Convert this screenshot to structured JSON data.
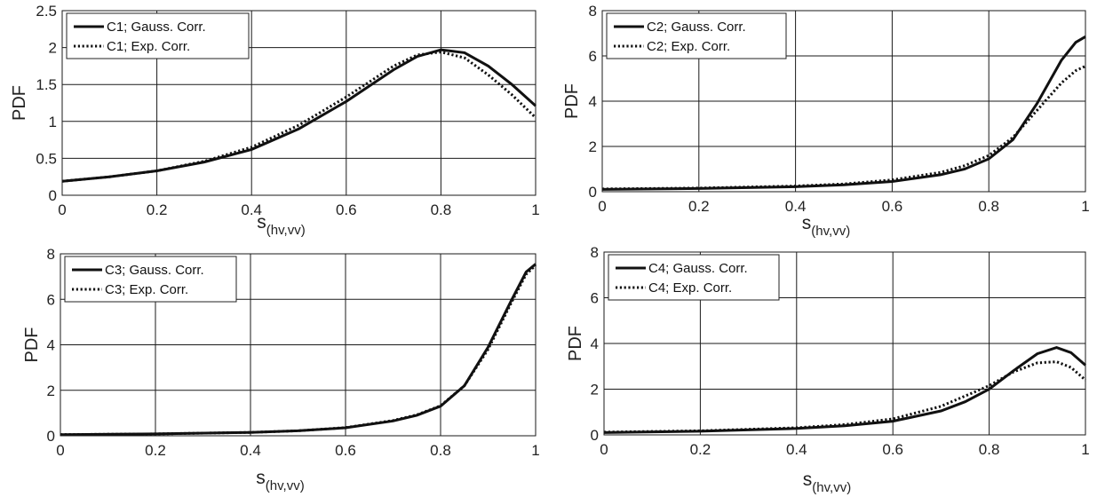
{
  "chart_data": [
    {
      "type": "line",
      "panel": "C1",
      "xlabel_main": "s",
      "xlabel_sub": "(hv,vv)",
      "ylabel": "PDF",
      "xlim": [
        0,
        1
      ],
      "ylim": [
        0,
        2.5
      ],
      "xticks": [
        "0",
        "0.2",
        "0.4",
        "0.6",
        "0.8",
        "1"
      ],
      "yticks": [
        "0",
        "0.5",
        "1",
        "1.5",
        "2",
        "2.5"
      ],
      "grid": true,
      "legend_position": "top-left",
      "series": [
        {
          "name": "C1; Gauss. Corr.",
          "style": "solid",
          "x": [
            0,
            0.1,
            0.2,
            0.3,
            0.4,
            0.5,
            0.6,
            0.7,
            0.75,
            0.8,
            0.85,
            0.9,
            0.95,
            1.0
          ],
          "y": [
            0.19,
            0.25,
            0.33,
            0.45,
            0.62,
            0.9,
            1.27,
            1.7,
            1.88,
            1.97,
            1.93,
            1.75,
            1.5,
            1.21
          ]
        },
        {
          "name": "C1; Exp. Corr.",
          "style": "dotted",
          "x": [
            0,
            0.1,
            0.2,
            0.3,
            0.4,
            0.5,
            0.6,
            0.7,
            0.75,
            0.8,
            0.85,
            0.9,
            0.95,
            1.0
          ],
          "y": [
            0.19,
            0.25,
            0.33,
            0.46,
            0.65,
            0.95,
            1.33,
            1.75,
            1.9,
            1.94,
            1.86,
            1.63,
            1.36,
            1.05
          ]
        }
      ]
    },
    {
      "type": "line",
      "panel": "C2",
      "xlabel_main": "s",
      "xlabel_sub": "(hv,vv)",
      "ylabel": "PDF",
      "xlim": [
        0,
        1
      ],
      "ylim": [
        0,
        8
      ],
      "xticks": [
        "0",
        "0.2",
        "0.4",
        "0.6",
        "0.8",
        "1"
      ],
      "yticks": [
        "0",
        "2",
        "4",
        "6",
        "8"
      ],
      "grid": true,
      "legend_position": "top-left",
      "series": [
        {
          "name": "C2; Gauss. Corr.",
          "style": "solid",
          "x": [
            0,
            0.2,
            0.4,
            0.5,
            0.6,
            0.7,
            0.75,
            0.8,
            0.85,
            0.9,
            0.95,
            0.98,
            1.0
          ],
          "y": [
            0.1,
            0.14,
            0.22,
            0.3,
            0.45,
            0.75,
            1.0,
            1.45,
            2.3,
            3.9,
            5.8,
            6.6,
            6.85
          ]
        },
        {
          "name": "C2; Exp. Corr.",
          "style": "dotted",
          "x": [
            0,
            0.2,
            0.4,
            0.5,
            0.6,
            0.7,
            0.75,
            0.8,
            0.85,
            0.9,
            0.95,
            0.98,
            1.0
          ],
          "y": [
            0.12,
            0.16,
            0.25,
            0.34,
            0.52,
            0.85,
            1.15,
            1.6,
            2.4,
            3.6,
            4.8,
            5.35,
            5.55
          ]
        }
      ]
    },
    {
      "type": "line",
      "panel": "C3",
      "xlabel_main": "s",
      "xlabel_sub": "(hv,vv)",
      "ylabel": "PDF",
      "xlim": [
        0,
        1
      ],
      "ylim": [
        0,
        8
      ],
      "xticks": [
        "0",
        "0.2",
        "0.4",
        "0.6",
        "0.8",
        "1"
      ],
      "yticks": [
        "0",
        "2",
        "4",
        "6",
        "8"
      ],
      "grid": true,
      "legend_position": "top-left",
      "series": [
        {
          "name": "C3; Gauss. Corr.",
          "style": "solid",
          "x": [
            0,
            0.2,
            0.4,
            0.5,
            0.6,
            0.7,
            0.75,
            0.8,
            0.85,
            0.9,
            0.95,
            0.98,
            1.0
          ],
          "y": [
            0.05,
            0.08,
            0.15,
            0.22,
            0.35,
            0.65,
            0.9,
            1.3,
            2.2,
            3.9,
            6.0,
            7.2,
            7.55
          ]
        },
        {
          "name": "C3; Exp. Corr.",
          "style": "dotted",
          "x": [
            0,
            0.2,
            0.4,
            0.5,
            0.6,
            0.7,
            0.75,
            0.8,
            0.85,
            0.9,
            0.95,
            0.98,
            1.0
          ],
          "y": [
            0.05,
            0.08,
            0.15,
            0.22,
            0.36,
            0.67,
            0.92,
            1.32,
            2.2,
            3.8,
            5.9,
            7.1,
            7.5
          ]
        }
      ]
    },
    {
      "type": "line",
      "panel": "C4",
      "xlabel_main": "s",
      "xlabel_sub": "(hv,vv)",
      "ylabel": "PDF",
      "xlim": [
        0,
        1
      ],
      "ylim": [
        0,
        8
      ],
      "xticks": [
        "0",
        "0.2",
        "0.4",
        "0.6",
        "0.8",
        "1"
      ],
      "yticks": [
        "0",
        "2",
        "4",
        "6",
        "8"
      ],
      "grid": true,
      "legend_position": "top-left",
      "series": [
        {
          "name": "C4; Gauss. Corr.",
          "style": "solid",
          "x": [
            0,
            0.2,
            0.4,
            0.5,
            0.6,
            0.7,
            0.75,
            0.8,
            0.85,
            0.9,
            0.94,
            0.97,
            1.0
          ],
          "y": [
            0.1,
            0.16,
            0.28,
            0.4,
            0.6,
            1.05,
            1.45,
            2.0,
            2.8,
            3.55,
            3.82,
            3.6,
            3.05
          ]
        },
        {
          "name": "C4; Exp. Corr.",
          "style": "dotted",
          "x": [
            0,
            0.2,
            0.4,
            0.5,
            0.6,
            0.7,
            0.75,
            0.8,
            0.85,
            0.9,
            0.94,
            0.97,
            1.0
          ],
          "y": [
            0.12,
            0.18,
            0.31,
            0.45,
            0.7,
            1.25,
            1.7,
            2.15,
            2.75,
            3.15,
            3.2,
            2.95,
            2.4
          ]
        }
      ]
    }
  ]
}
